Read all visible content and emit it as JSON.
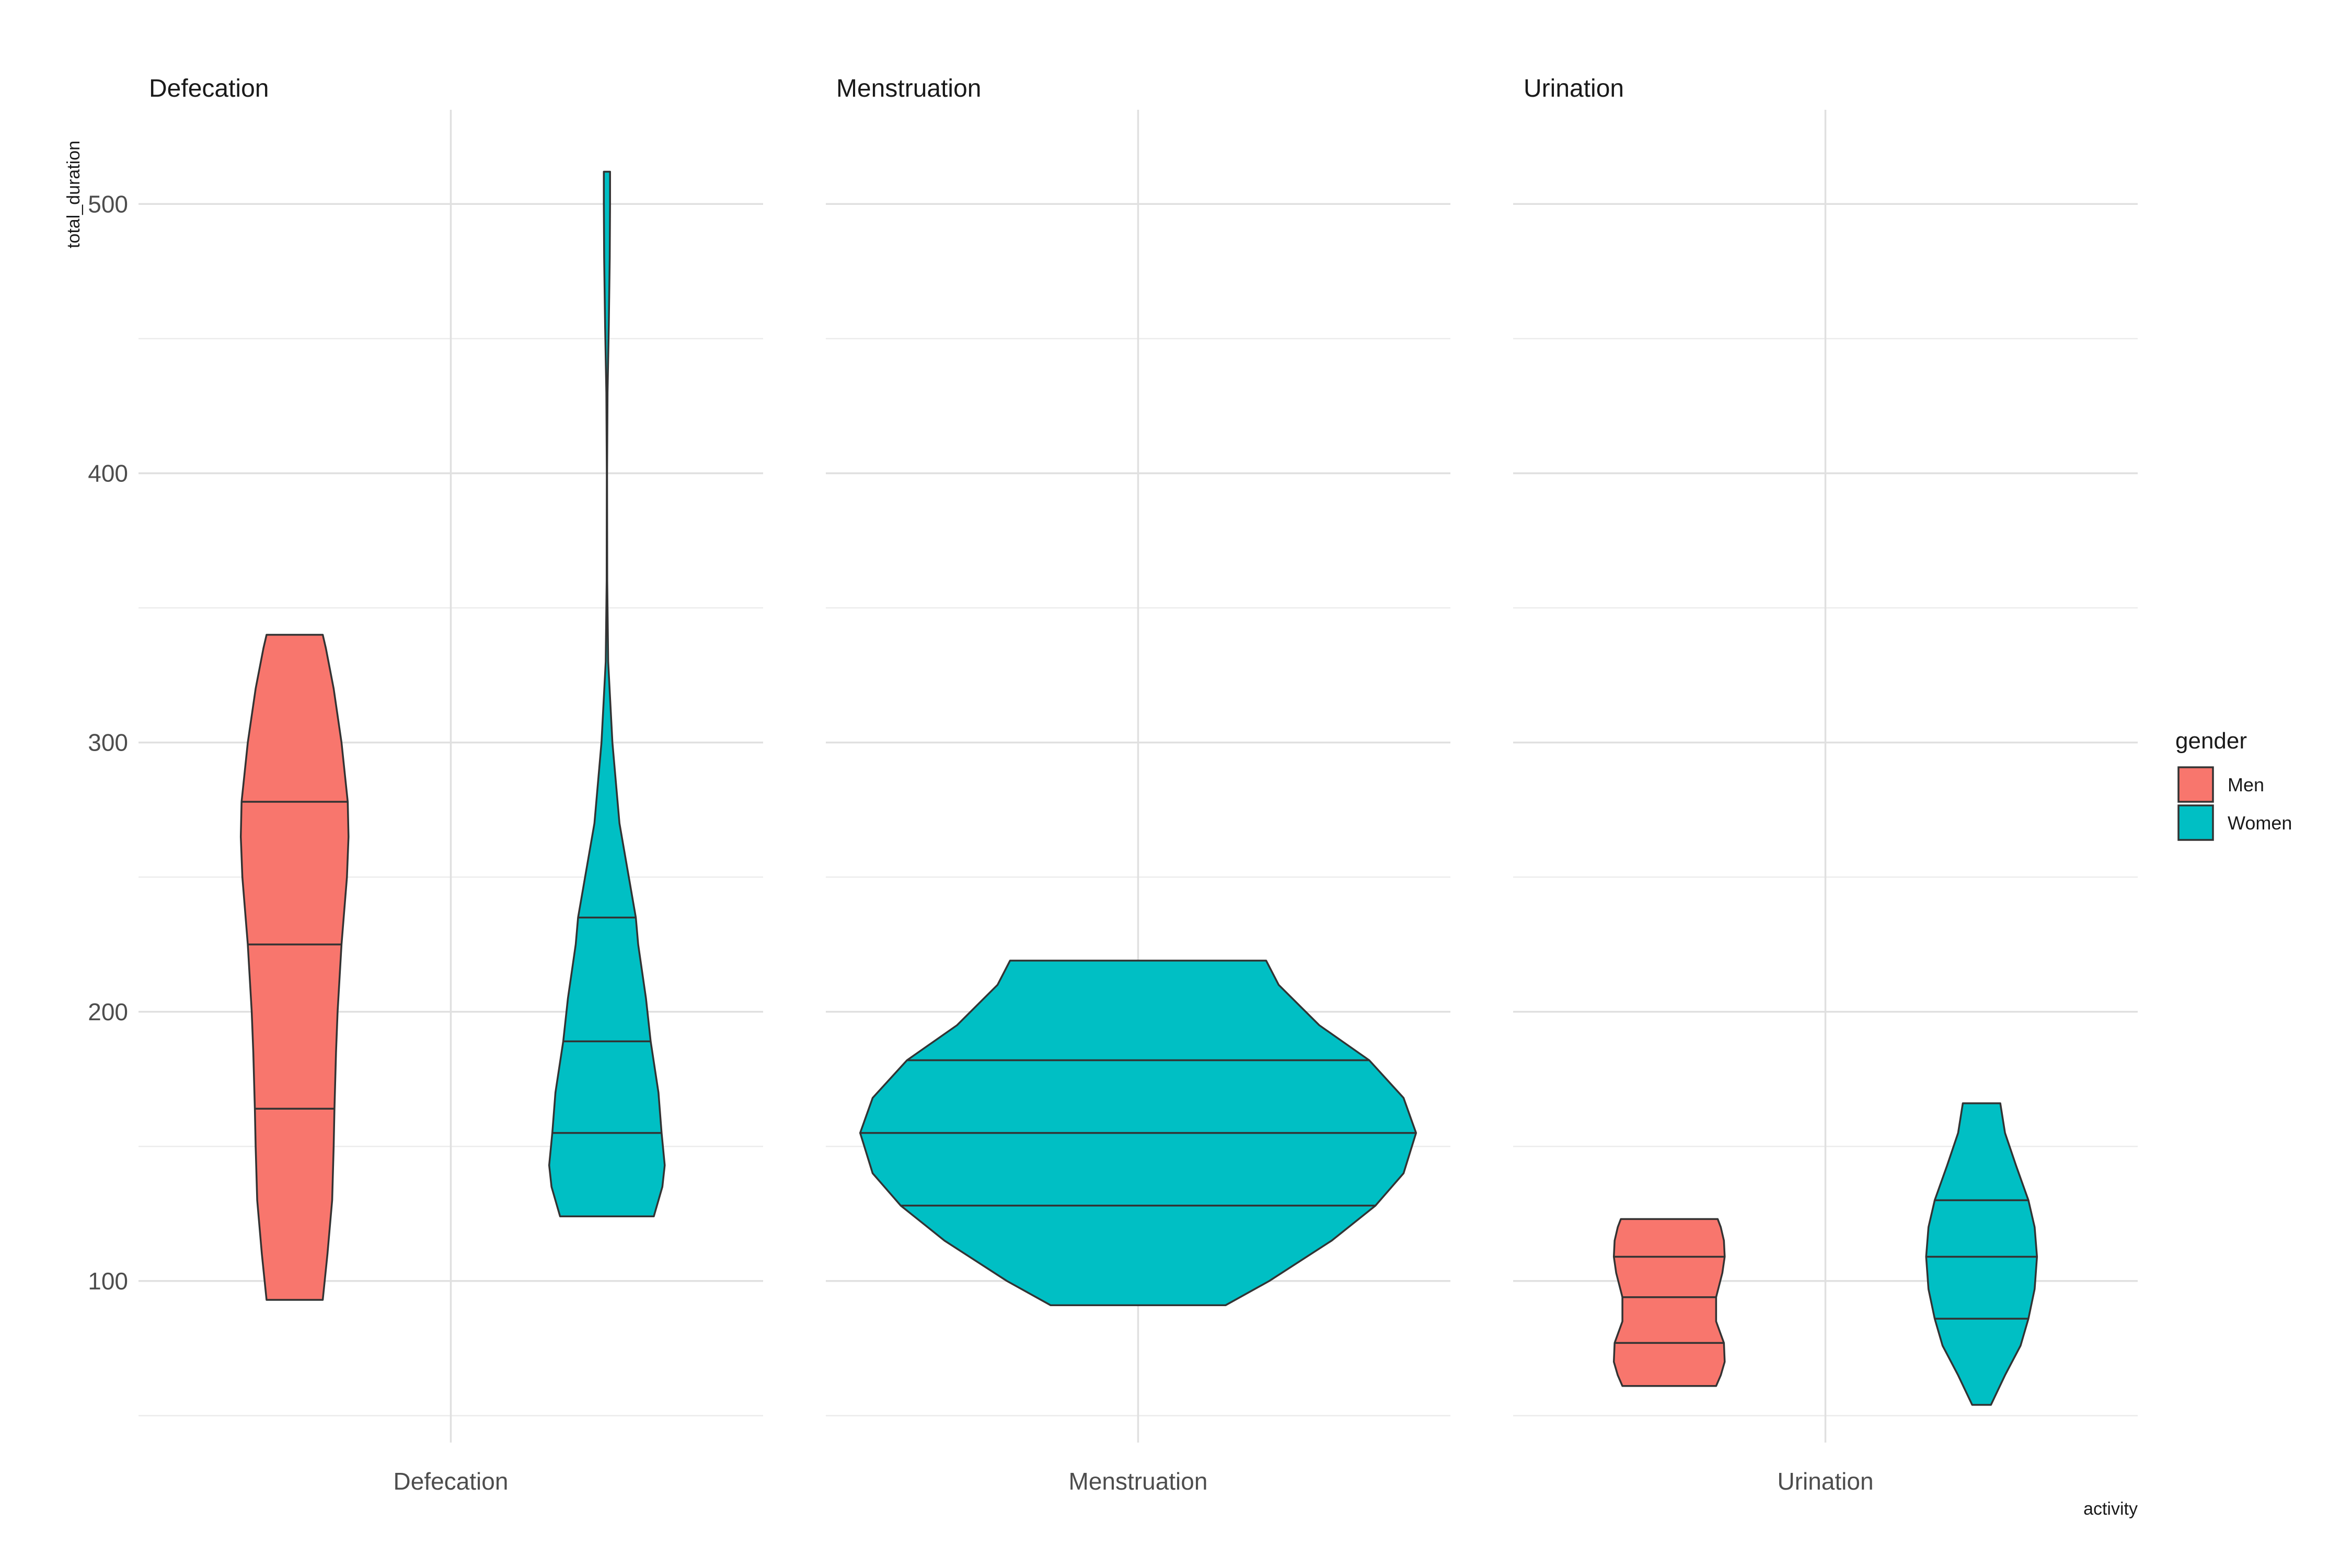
{
  "chart_data": {
    "type": "violin",
    "facet_variable": "activity",
    "facets": [
      "Defecation",
      "Menstruation",
      "Urination"
    ],
    "xlabel": "activity",
    "ylabel": "total_duration",
    "y_ticks": [
      100,
      200,
      300,
      400,
      500
    ],
    "ylim": [
      40,
      535
    ],
    "grid": true,
    "legend": {
      "title": "gender",
      "position": "right",
      "items": [
        {
          "label": "Men",
          "color": "#F8766D"
        },
        {
          "label": "Women",
          "color": "#00BFC4"
        }
      ]
    },
    "violins": [
      {
        "facet": "Defecation",
        "gender": "Men",
        "slot": "left",
        "min": 93,
        "max": 340,
        "quantiles": [
          164,
          225,
          278
        ],
        "profile": [
          [
            93,
            0.18
          ],
          [
            110,
            0.21
          ],
          [
            130,
            0.24
          ],
          [
            150,
            0.25
          ],
          [
            164,
            0.255
          ],
          [
            185,
            0.265
          ],
          [
            200,
            0.275
          ],
          [
            225,
            0.3
          ],
          [
            250,
            0.335
          ],
          [
            265,
            0.345
          ],
          [
            278,
            0.34
          ],
          [
            300,
            0.3
          ],
          [
            320,
            0.25
          ],
          [
            335,
            0.2
          ],
          [
            340,
            0.18
          ]
        ]
      },
      {
        "facet": "Defecation",
        "gender": "Women",
        "slot": "right",
        "min": 124,
        "max": 512,
        "quantiles": [
          155,
          189,
          235
        ],
        "profile": [
          [
            124,
            0.3
          ],
          [
            135,
            0.355
          ],
          [
            143,
            0.37
          ],
          [
            155,
            0.35
          ],
          [
            170,
            0.33
          ],
          [
            189,
            0.28
          ],
          [
            205,
            0.25
          ],
          [
            225,
            0.2
          ],
          [
            235,
            0.185
          ],
          [
            250,
            0.14
          ],
          [
            270,
            0.08
          ],
          [
            300,
            0.035
          ],
          [
            330,
            0.008
          ],
          [
            360,
            0.002
          ],
          [
            400,
            0.001
          ],
          [
            430,
            0.004
          ],
          [
            455,
            0.012
          ],
          [
            480,
            0.018
          ],
          [
            500,
            0.02
          ],
          [
            512,
            0.02
          ]
        ]
      },
      {
        "facet": "Menstruation",
        "gender": "Women",
        "slot": "center",
        "min": 91,
        "max": 219,
        "quantiles": [
          128,
          155,
          182
        ],
        "profile": [
          [
            91,
            0.28
          ],
          [
            100,
            0.42
          ],
          [
            115,
            0.62
          ],
          [
            128,
            0.76
          ],
          [
            140,
            0.85
          ],
          [
            155,
            0.89
          ],
          [
            168,
            0.85
          ],
          [
            182,
            0.74
          ],
          [
            195,
            0.58
          ],
          [
            210,
            0.45
          ],
          [
            219,
            0.41
          ]
        ]
      },
      {
        "facet": "Urination",
        "gender": "Men",
        "slot": "left",
        "min": 61,
        "max": 123,
        "quantiles": [
          77,
          94,
          109
        ],
        "profile": [
          [
            61,
            0.3
          ],
          [
            65,
            0.33
          ],
          [
            70,
            0.355
          ],
          [
            77,
            0.35
          ],
          [
            85,
            0.3
          ],
          [
            94,
            0.3
          ],
          [
            103,
            0.34
          ],
          [
            109,
            0.355
          ],
          [
            115,
            0.35
          ],
          [
            120,
            0.33
          ],
          [
            123,
            0.31
          ]
        ]
      },
      {
        "facet": "Urination",
        "gender": "Women",
        "slot": "right",
        "min": 54,
        "max": 166,
        "quantiles": [
          86,
          109,
          130
        ],
        "profile": [
          [
            54,
            0.06
          ],
          [
            65,
            0.15
          ],
          [
            76,
            0.25
          ],
          [
            86,
            0.3
          ],
          [
            97,
            0.34
          ],
          [
            109,
            0.355
          ],
          [
            120,
            0.34
          ],
          [
            130,
            0.3
          ],
          [
            143,
            0.22
          ],
          [
            155,
            0.15
          ],
          [
            166,
            0.12
          ]
        ]
      }
    ]
  }
}
